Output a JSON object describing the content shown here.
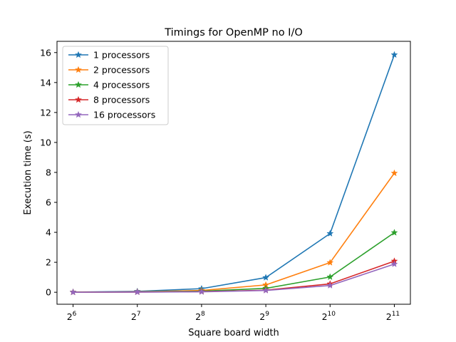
{
  "chart_data": {
    "type": "line",
    "title": "Timings for OpenMP no I/O",
    "xlabel": "Square board width",
    "ylabel": "Execution time (s)",
    "x": [
      64,
      128,
      256,
      512,
      1024,
      2048
    ],
    "x_scale": "log2",
    "x_tick_exponents": [
      "6",
      "7",
      "8",
      "9",
      "10",
      "11"
    ],
    "x_tick_base": "2",
    "ylim": [
      -0.8,
      16.75
    ],
    "y_ticks": [
      0,
      2,
      4,
      6,
      8,
      10,
      12,
      14,
      16
    ],
    "grid": false,
    "legend_position": "top-left",
    "marker": "star",
    "series": [
      {
        "name": "1 processors",
        "color": "#1f77b4",
        "values": [
          0.01,
          0.06,
          0.24,
          0.98,
          3.92,
          15.85
        ]
      },
      {
        "name": "2 processors",
        "color": "#ff7f0e",
        "values": [
          0.005,
          0.03,
          0.12,
          0.49,
          1.98,
          7.95
        ]
      },
      {
        "name": "4 processors",
        "color": "#2ca02c",
        "values": [
          0.003,
          0.02,
          0.07,
          0.26,
          1.02,
          3.98
        ]
      },
      {
        "name": "8 processors",
        "color": "#d62728",
        "values": [
          0.002,
          0.01,
          0.04,
          0.14,
          0.56,
          2.08
        ]
      },
      {
        "name": "16 processors",
        "color": "#9467bd",
        "values": [
          0.002,
          0.01,
          0.03,
          0.12,
          0.45,
          1.88
        ]
      }
    ]
  }
}
